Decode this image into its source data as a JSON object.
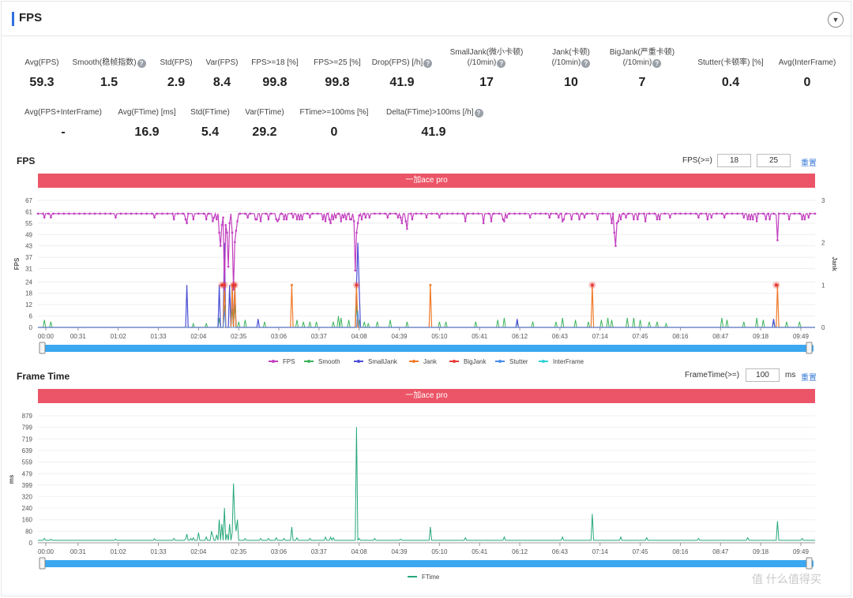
{
  "header": {
    "title": "FPS",
    "collapse_icon": "chevron-down-icon"
  },
  "stats_row1": [
    {
      "label": "Avg(FPS)",
      "value": "59.3",
      "help": false
    },
    {
      "label": "Smooth(稳帧指数)",
      "value": "1.5",
      "help": true
    },
    {
      "label": "Std(FPS)",
      "value": "2.9",
      "help": false
    },
    {
      "label": "Var(FPS)",
      "value": "8.4",
      "help": false
    },
    {
      "label": "FPS>=18 [%]",
      "value": "99.8",
      "help": false
    },
    {
      "label": "FPS>=25 [%]",
      "value": "99.8",
      "help": false
    },
    {
      "label": "Drop(FPS) [/h]",
      "value": "41.9",
      "help": true
    },
    {
      "label": "SmallJank(微小卡顿)",
      "label2": "(/10min)",
      "value": "17",
      "help": true
    },
    {
      "label": "Jank(卡顿)",
      "label2": "(/10min)",
      "value": "10",
      "help": true
    },
    {
      "label": "BigJank(严重卡顿)",
      "label2": "(/10min)",
      "value": "7",
      "help": true
    },
    {
      "label": "Stutter(卡顿率) [%]",
      "value": "0.4",
      "help": false
    },
    {
      "label": "Avg(InterFrame)",
      "value": "0",
      "help": false
    }
  ],
  "stats_row2": [
    {
      "label": "Avg(FPS+InterFrame)",
      "value": "-",
      "help": false
    },
    {
      "label": "Avg(FTime) [ms]",
      "value": "16.9",
      "help": false
    },
    {
      "label": "Std(FTime)",
      "value": "5.4",
      "help": false
    },
    {
      "label": "Var(FTime)",
      "value": "29.2",
      "help": false
    },
    {
      "label": "FTime>=100ms [%]",
      "value": "0",
      "help": false
    },
    {
      "label": "Delta(FTime)>100ms [/h]",
      "value": "41.9",
      "help": true
    }
  ],
  "fps_section": {
    "title": "FPS",
    "threshold_label": "FPS(>=)",
    "threshold1": "18",
    "threshold2": "25",
    "reset_label": "重置",
    "banner": "一加ace pro"
  },
  "ftime_section": {
    "title": "Frame Time",
    "threshold_label": "FrameTime(>=)",
    "threshold": "100",
    "unit": "ms",
    "reset_label": "重置",
    "banner": "一加ace pro"
  },
  "colors": {
    "fps": "#c23fbf",
    "smooth": "#3cb35a",
    "smalljank": "#4b4fd6",
    "jank": "#f07b2a",
    "bigjank": "#e53935",
    "stutter": "#4a8ee8",
    "interframe": "#33d1d6",
    "ftime": "#27a87a",
    "banner": "#ec5567",
    "scroll": "#3aa7f0"
  },
  "watermark": "值 什么值得买",
  "chart_data": [
    {
      "type": "line",
      "x_ticks": [
        "00:00",
        "00:31",
        "01:02",
        "01:33",
        "02:04",
        "02:35",
        "03:06",
        "03:37",
        "04:08",
        "04:39",
        "05:10",
        "05:41",
        "06:12",
        "06:43",
        "07:14",
        "07:45",
        "08:16",
        "08:47",
        "09:18",
        "09:49"
      ],
      "x_range_sec": [
        0,
        600
      ],
      "ylabel": "FPS",
      "y_ticks": [
        0,
        6,
        12,
        18,
        24,
        31,
        37,
        43,
        49,
        55,
        61,
        67
      ],
      "ylim": [
        0,
        67
      ],
      "y2label": "Jank",
      "y2_ticks": [
        0,
        1,
        2,
        3
      ],
      "y2lim": [
        0,
        3
      ],
      "legend": [
        "FPS",
        "Smooth",
        "SmallJank",
        "Jank",
        "BigJank",
        "Stutter",
        "InterFrame"
      ],
      "fps_baseline": 60,
      "fps_dips": [
        [
          5,
          58
        ],
        [
          10,
          58
        ],
        [
          60,
          58
        ],
        [
          90,
          58
        ],
        [
          105,
          57
        ],
        [
          114,
          57
        ],
        [
          115,
          55
        ],
        [
          120,
          57
        ],
        [
          130,
          57
        ],
        [
          135,
          56
        ],
        [
          136,
          58
        ],
        [
          138,
          57
        ],
        [
          145,
          56
        ],
        [
          147,
          55
        ],
        [
          148,
          57
        ],
        [
          150,
          54
        ],
        [
          152,
          57
        ],
        [
          162,
          58
        ],
        [
          168,
          57
        ],
        [
          169,
          57
        ],
        [
          172,
          56
        ],
        [
          178,
          57
        ],
        [
          184,
          57
        ],
        [
          185,
          56
        ],
        [
          186,
          57
        ],
        [
          190,
          57
        ],
        [
          192,
          57
        ],
        [
          197,
          58
        ],
        [
          200,
          57
        ],
        [
          202,
          57
        ],
        [
          204,
          57
        ],
        [
          210,
          58
        ],
        [
          220,
          57
        ],
        [
          222,
          56
        ],
        [
          225,
          57
        ],
        [
          226,
          55
        ],
        [
          228,
          57
        ],
        [
          230,
          58
        ],
        [
          234,
          56
        ],
        [
          236,
          58
        ],
        [
          238,
          57
        ],
        [
          241,
          57
        ],
        [
          242,
          57
        ],
        [
          244,
          56
        ],
        [
          248,
          58
        ],
        [
          250,
          57
        ],
        [
          253,
          58
        ],
        [
          256,
          58
        ],
        [
          270,
          58
        ],
        [
          278,
          58
        ],
        [
          280,
          58
        ],
        [
          300,
          58
        ],
        [
          310,
          58
        ],
        [
          330,
          56
        ],
        [
          344,
          55
        ],
        [
          350,
          56
        ],
        [
          359,
          57
        ],
        [
          360,
          56
        ],
        [
          362,
          58
        ],
        [
          380,
          58
        ],
        [
          395,
          58
        ],
        [
          402,
          58
        ],
        [
          405,
          56
        ],
        [
          406,
          57
        ],
        [
          412,
          57
        ],
        [
          418,
          57
        ],
        [
          422,
          58
        ],
        [
          432,
          57
        ],
        [
          443,
          55
        ],
        [
          446,
          57
        ],
        [
          448,
          56
        ],
        [
          450,
          57
        ],
        [
          454,
          58
        ],
        [
          460,
          57
        ],
        [
          463,
          57
        ],
        [
          469,
          56
        ],
        [
          478,
          57
        ],
        [
          480,
          57
        ],
        [
          488,
          58
        ],
        [
          510,
          58
        ],
        [
          517,
          57
        ],
        [
          520,
          58
        ],
        [
          530,
          58
        ],
        [
          545,
          58
        ],
        [
          548,
          57
        ],
        [
          550,
          57
        ],
        [
          552,
          57
        ],
        [
          555,
          56
        ],
        [
          562,
          57
        ],
        [
          565,
          57
        ],
        [
          580,
          57
        ],
        [
          590,
          57
        ],
        [
          592,
          57
        ],
        [
          595,
          58
        ]
      ],
      "fps_spikes": [
        [
          140,
          50
        ],
        [
          141,
          43
        ],
        [
          142,
          54
        ],
        [
          143,
          58
        ],
        [
          144,
          20
        ],
        [
          145,
          54
        ],
        [
          146,
          50
        ],
        [
          147,
          32
        ],
        [
          148,
          55
        ],
        [
          150,
          50
        ],
        [
          151,
          20
        ],
        [
          152,
          45
        ],
        [
          153,
          51
        ],
        [
          154,
          56
        ],
        [
          245,
          30
        ],
        [
          246,
          50
        ],
        [
          247,
          55
        ],
        [
          248,
          59
        ],
        [
          281,
          55
        ],
        [
          284,
          56
        ],
        [
          285,
          52
        ],
        [
          289,
          57
        ],
        [
          445,
          50
        ],
        [
          446,
          43
        ],
        [
          447,
          55
        ],
        [
          570,
          59
        ],
        [
          571,
          46
        ]
      ],
      "smooth_events": [
        [
          5,
          4
        ],
        [
          10,
          3
        ],
        [
          120,
          2
        ],
        [
          130,
          2
        ],
        [
          140,
          5
        ],
        [
          144,
          12
        ],
        [
          150,
          10
        ],
        [
          152,
          12
        ],
        [
          155,
          3
        ],
        [
          160,
          4
        ],
        [
          175,
          3
        ],
        [
          200,
          4
        ],
        [
          205,
          3
        ],
        [
          210,
          3
        ],
        [
          215,
          3
        ],
        [
          228,
          3
        ],
        [
          232,
          6
        ],
        [
          234,
          5
        ],
        [
          240,
          4
        ],
        [
          246,
          12
        ],
        [
          248,
          4
        ],
        [
          252,
          3
        ],
        [
          255,
          2
        ],
        [
          262,
          3
        ],
        [
          272,
          4
        ],
        [
          285,
          3
        ],
        [
          310,
          3
        ],
        [
          315,
          3
        ],
        [
          338,
          3
        ],
        [
          355,
          4
        ],
        [
          360,
          5
        ],
        [
          370,
          3
        ],
        [
          382,
          3
        ],
        [
          400,
          3
        ],
        [
          405,
          5
        ],
        [
          415,
          4
        ],
        [
          425,
          3
        ],
        [
          435,
          4
        ],
        [
          440,
          5
        ],
        [
          443,
          4
        ],
        [
          455,
          5
        ],
        [
          460,
          5
        ],
        [
          465,
          4
        ],
        [
          472,
          3
        ],
        [
          478,
          3
        ],
        [
          485,
          2
        ],
        [
          528,
          5
        ],
        [
          532,
          4
        ],
        [
          545,
          3
        ],
        [
          555,
          5
        ],
        [
          560,
          4
        ],
        [
          568,
          3
        ],
        [
          578,
          3
        ],
        [
          588,
          3
        ]
      ],
      "smalljank_events": [
        [
          115,
          1
        ],
        [
          140,
          1
        ],
        [
          144,
          2
        ],
        [
          150,
          1
        ],
        [
          148,
          1
        ],
        [
          152,
          1
        ],
        [
          247,
          2
        ],
        [
          246,
          1
        ],
        [
          248,
          1
        ],
        [
          170,
          0.2
        ],
        [
          370,
          0.2
        ],
        [
          568,
          0.2
        ]
      ],
      "jank_events": [
        [
          144,
          1
        ],
        [
          150,
          1
        ],
        [
          152,
          1
        ],
        [
          196,
          1
        ],
        [
          246,
          1
        ],
        [
          303,
          1
        ],
        [
          428,
          1
        ],
        [
          571,
          1
        ]
      ],
      "bigjank_events": [
        [
          142,
          1
        ],
        [
          144,
          1
        ],
        [
          151,
          1
        ],
        [
          152,
          1
        ],
        [
          246,
          1
        ],
        [
          428,
          1
        ],
        [
          570,
          1
        ]
      ]
    },
    {
      "type": "line",
      "x_ticks": [
        "00:00",
        "00:31",
        "01:02",
        "01:33",
        "02:04",
        "02:35",
        "03:06",
        "03:37",
        "04:08",
        "04:39",
        "05:10",
        "05:41",
        "06:12",
        "06:43",
        "07:14",
        "07:45",
        "08:16",
        "08:47",
        "09:18",
        "09:49"
      ],
      "x_range_sec": [
        0,
        600
      ],
      "ylabel": "ms",
      "y_ticks": [
        0,
        80,
        160,
        240,
        320,
        399,
        479,
        559,
        639,
        719,
        799,
        879
      ],
      "ylim": [
        0,
        879
      ],
      "legend": [
        "FTime"
      ],
      "ftime_baseline": 16.7,
      "ftime_spikes": [
        [
          5,
          30
        ],
        [
          10,
          25
        ],
        [
          60,
          25
        ],
        [
          90,
          28
        ],
        [
          105,
          30
        ],
        [
          114,
          25
        ],
        [
          115,
          60
        ],
        [
          118,
          30
        ],
        [
          120,
          35
        ],
        [
          124,
          70
        ],
        [
          130,
          40
        ],
        [
          134,
          80
        ],
        [
          135,
          50
        ],
        [
          138,
          55
        ],
        [
          140,
          160
        ],
        [
          142,
          130
        ],
        [
          144,
          240
        ],
        [
          146,
          60
        ],
        [
          148,
          130
        ],
        [
          150,
          70
        ],
        [
          151,
          410
        ],
        [
          152,
          160
        ],
        [
          153,
          80
        ],
        [
          154,
          160
        ],
        [
          160,
          30
        ],
        [
          172,
          30
        ],
        [
          178,
          30
        ],
        [
          184,
          35
        ],
        [
          190,
          30
        ],
        [
          196,
          110
        ],
        [
          200,
          35
        ],
        [
          210,
          30
        ],
        [
          222,
          40
        ],
        [
          226,
          40
        ],
        [
          228,
          35
        ],
        [
          246,
          800
        ],
        [
          248,
          30
        ],
        [
          260,
          30
        ],
        [
          280,
          25
        ],
        [
          303,
          110
        ],
        [
          330,
          35
        ],
        [
          360,
          40
        ],
        [
          405,
          40
        ],
        [
          428,
          200
        ],
        [
          450,
          40
        ],
        [
          470,
          35
        ],
        [
          510,
          30
        ],
        [
          548,
          35
        ],
        [
          571,
          150
        ],
        [
          590,
          30
        ]
      ]
    }
  ]
}
